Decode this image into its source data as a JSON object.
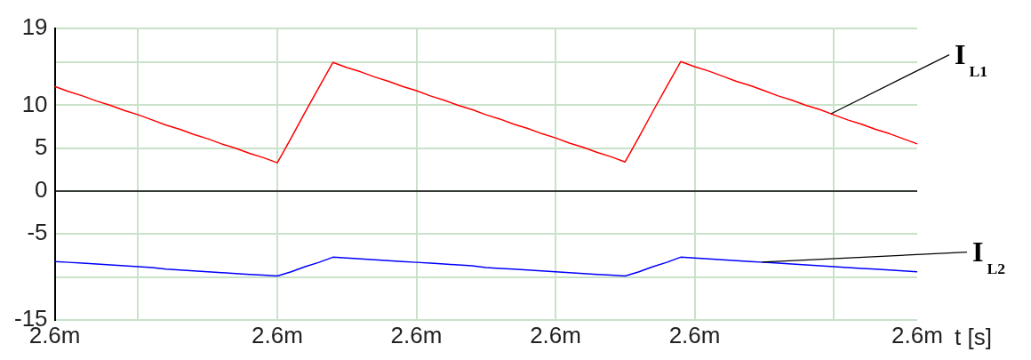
{
  "chart_data": {
    "type": "line",
    "xlabel": "t [s]",
    "categories": [
      "2.6m",
      null,
      null,
      null,
      null,
      null,
      null,
      null,
      null,
      null,
      null,
      null,
      null,
      null,
      null,
      null,
      "2.6m",
      null,
      null,
      null,
      null,
      null,
      null,
      null,
      null,
      null,
      "2.6m",
      null,
      null,
      null,
      null,
      null,
      null,
      null,
      null,
      null,
      "2.6m",
      null,
      null,
      null,
      null,
      null,
      null,
      null,
      null,
      null,
      "2.6m",
      null,
      null,
      null,
      null,
      null,
      null,
      null,
      null,
      null,
      null,
      null,
      null,
      null,
      null,
      null,
      "2.6m"
    ],
    "ylim": [
      -15,
      19
    ],
    "yticks": [
      -15,
      {
        "value": -10,
        "label": null
      },
      -5,
      0,
      5,
      10,
      {
        "value": 15,
        "label": null
      },
      19
    ],
    "grid": true,
    "legend": false,
    "marker": "none",
    "line_style": "solid",
    "ref_lines": [
      {
        "axis": "y",
        "value": 0,
        "color": "#000000"
      }
    ],
    "series": [
      {
        "name": "I$_{L1}$",
        "color": "#ff0000",
        "values": [
          12.2,
          11.6,
          11.1,
          10.5,
          10.0,
          9.4,
          8.9,
          8.3,
          7.7,
          7.2,
          6.6,
          6.1,
          5.5,
          5.0,
          4.4,
          3.9,
          3.3,
          6.2,
          9.2,
          12.1,
          15.0,
          14.4,
          13.9,
          13.3,
          12.8,
          12.2,
          11.7,
          11.1,
          10.6,
          10.0,
          9.5,
          8.9,
          8.4,
          7.8,
          7.3,
          6.7,
          6.2,
          5.6,
          5.1,
          4.5,
          4.0,
          3.4,
          6.3,
          9.3,
          12.2,
          15.1,
          14.5,
          14.0,
          13.4,
          12.8,
          12.3,
          11.7,
          11.1,
          10.6,
          10.0,
          9.5,
          8.9,
          8.3,
          7.8,
          7.2,
          6.7,
          6.1,
          5.5
        ]
      },
      {
        "name": "I$_{L2}$",
        "color": "#0000ff",
        "values": [
          -8.2,
          -8.3,
          -8.4,
          -8.5,
          -8.6,
          -8.7,
          -8.8,
          -8.9,
          -9.1,
          -9.2,
          -9.3,
          -9.4,
          -9.5,
          -9.6,
          -9.7,
          -9.8,
          -9.9,
          -9.4,
          -8.8,
          -8.3,
          -7.7,
          -7.8,
          -7.9,
          -8.0,
          -8.1,
          -8.2,
          -8.3,
          -8.4,
          -8.5,
          -8.6,
          -8.7,
          -8.9,
          -9.0,
          -9.1,
          -9.2,
          -9.3,
          -9.4,
          -9.5,
          -9.6,
          -9.7,
          -9.8,
          -9.9,
          -9.4,
          -8.8,
          -8.3,
          -7.7,
          -7.8,
          -7.9,
          -8.0,
          -8.1,
          -8.2,
          -8.3,
          -8.4,
          -8.5,
          -8.6,
          -8.7,
          -8.8,
          -8.9,
          -9.0,
          -9.1,
          -9.2,
          -9.3,
          -9.4
        ]
      }
    ]
  }
}
